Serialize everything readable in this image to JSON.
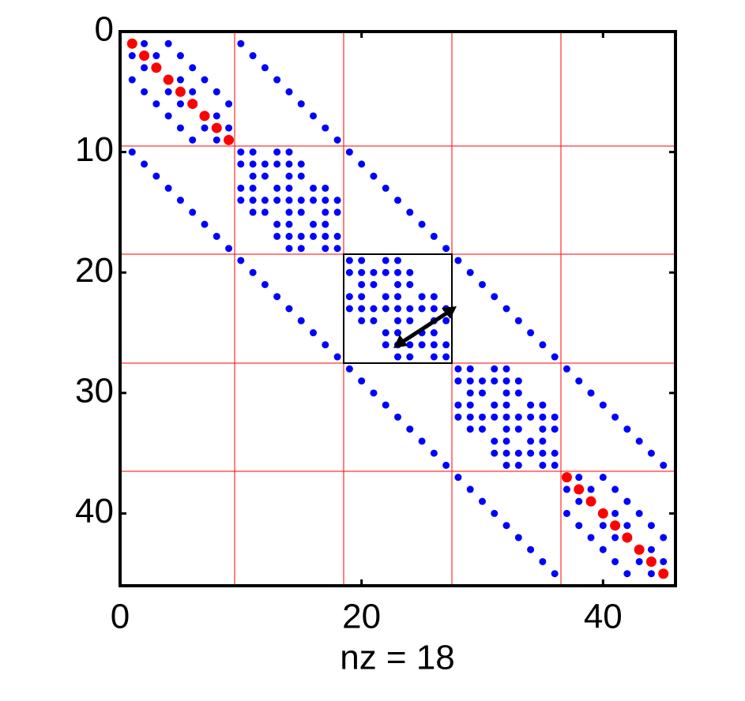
{
  "chart_data": {
    "type": "scatter",
    "xlabel": "nz = 18",
    "xlim": [
      0,
      46
    ],
    "ylim": [
      0,
      46
    ],
    "y_reversed": true,
    "xticks": [
      0,
      20,
      40
    ],
    "yticks": [
      0,
      10,
      20,
      30,
      40
    ],
    "series": [
      {
        "color": "#0000ff",
        "x": [
          2,
          4,
          1,
          3,
          5,
          2,
          6,
          1,
          5,
          7,
          2,
          4,
          6,
          8,
          3,
          5,
          9,
          4,
          8,
          5,
          7,
          9,
          6,
          8
        ],
        "y": [
          1,
          1,
          2,
          2,
          2,
          3,
          3,
          4,
          4,
          4,
          5,
          5,
          5,
          5,
          6,
          6,
          6,
          7,
          7,
          8,
          8,
          8,
          9,
          9
        ]
      },
      {
        "color": "#0000ff",
        "x": [
          38,
          40,
          37,
          39,
          41,
          38,
          42,
          37,
          41,
          43,
          38,
          40,
          42,
          44,
          39,
          41,
          45,
          40,
          44,
          41,
          43,
          45,
          42,
          44
        ],
        "y": [
          37,
          37,
          38,
          38,
          38,
          39,
          39,
          40,
          40,
          40,
          41,
          41,
          41,
          41,
          42,
          42,
          42,
          43,
          43,
          44,
          44,
          44,
          45,
          45
        ]
      },
      {
        "color": "#0000ff",
        "x": [
          10,
          11,
          13,
          14,
          10,
          11,
          12,
          13,
          14,
          15,
          11,
          12,
          14,
          15,
          10,
          11,
          13,
          14,
          16,
          17,
          10,
          11,
          12,
          13,
          14,
          15,
          16,
          17,
          18,
          11,
          12,
          14,
          15,
          17,
          18,
          13,
          14,
          16,
          17,
          13,
          14,
          15,
          16,
          17,
          18,
          14,
          15,
          17,
          18
        ],
        "y": [
          10,
          10,
          10,
          10,
          11,
          11,
          11,
          11,
          11,
          11,
          12,
          12,
          12,
          12,
          13,
          13,
          13,
          13,
          13,
          13,
          14,
          14,
          14,
          14,
          14,
          14,
          14,
          14,
          14,
          15,
          15,
          15,
          15,
          15,
          15,
          16,
          16,
          16,
          16,
          17,
          17,
          17,
          17,
          17,
          17,
          18,
          18,
          18,
          18
        ]
      },
      {
        "color": "#0000ff",
        "x": [
          19,
          20,
          22,
          23,
          19,
          20,
          21,
          22,
          23,
          24,
          20,
          21,
          23,
          24,
          19,
          20,
          22,
          23,
          25,
          26,
          19,
          20,
          21,
          22,
          23,
          24,
          25,
          26,
          27,
          20,
          21,
          23,
          24,
          26,
          27,
          22,
          23,
          25,
          26,
          22,
          23,
          24,
          25,
          26,
          27,
          23,
          24,
          26,
          27
        ],
        "y": [
          19,
          19,
          19,
          19,
          20,
          20,
          20,
          20,
          20,
          20,
          21,
          21,
          21,
          21,
          22,
          22,
          22,
          22,
          22,
          22,
          23,
          23,
          23,
          23,
          23,
          23,
          23,
          23,
          23,
          24,
          24,
          24,
          24,
          24,
          24,
          25,
          25,
          25,
          25,
          26,
          26,
          26,
          26,
          26,
          26,
          27,
          27,
          27,
          27
        ]
      },
      {
        "color": "#0000ff",
        "x": [
          28,
          29,
          31,
          32,
          28,
          29,
          30,
          31,
          32,
          33,
          29,
          30,
          32,
          33,
          28,
          29,
          31,
          32,
          34,
          35,
          28,
          29,
          30,
          31,
          32,
          33,
          34,
          35,
          36,
          29,
          30,
          32,
          33,
          35,
          36,
          31,
          32,
          34,
          35,
          31,
          32,
          33,
          34,
          35,
          36,
          32,
          33,
          35,
          36
        ],
        "y": [
          28,
          28,
          28,
          28,
          29,
          29,
          29,
          29,
          29,
          29,
          30,
          30,
          30,
          30,
          31,
          31,
          31,
          31,
          31,
          31,
          32,
          32,
          32,
          32,
          32,
          32,
          32,
          32,
          32,
          33,
          33,
          33,
          33,
          33,
          33,
          34,
          34,
          34,
          34,
          35,
          35,
          35,
          35,
          35,
          35,
          36,
          36,
          36,
          36
        ]
      },
      {
        "color": "#0000ff",
        "x": [
          10,
          11,
          12,
          13,
          14,
          15,
          16,
          17,
          18,
          19,
          20,
          21,
          22,
          23,
          24,
          25,
          26,
          27,
          28,
          29,
          30,
          31,
          32,
          33,
          34,
          35,
          36,
          37,
          38,
          39,
          40,
          41,
          42,
          43,
          44,
          45
        ],
        "y": [
          1,
          2,
          3,
          4,
          5,
          6,
          7,
          8,
          9,
          10,
          11,
          12,
          13,
          14,
          15,
          16,
          17,
          18,
          19,
          20,
          21,
          22,
          23,
          24,
          25,
          26,
          27,
          28,
          29,
          30,
          31,
          32,
          33,
          34,
          35,
          36
        ]
      },
      {
        "color": "#0000ff",
        "x": [
          1,
          2,
          3,
          4,
          5,
          6,
          7,
          8,
          9,
          10,
          11,
          12,
          13,
          14,
          15,
          16,
          17,
          18,
          19,
          20,
          21,
          22,
          23,
          24,
          25,
          26,
          27,
          28,
          29,
          30,
          31,
          32,
          33,
          34,
          35,
          36
        ],
        "y": [
          10,
          11,
          12,
          13,
          14,
          15,
          16,
          17,
          18,
          19,
          20,
          21,
          22,
          23,
          24,
          25,
          26,
          27,
          28,
          29,
          30,
          31,
          32,
          33,
          34,
          35,
          36,
          37,
          38,
          39,
          40,
          41,
          42,
          43,
          44,
          45
        ]
      },
      {
        "color": "#ff0000",
        "size": "large",
        "x": [
          1,
          2,
          3,
          4,
          5,
          6,
          7,
          8,
          9,
          37,
          38,
          39,
          40,
          41,
          42,
          43,
          44,
          45
        ],
        "y": [
          1,
          2,
          3,
          4,
          5,
          6,
          7,
          8,
          9,
          37,
          38,
          39,
          40,
          41,
          42,
          43,
          44,
          45
        ]
      }
    ]
  }
}
